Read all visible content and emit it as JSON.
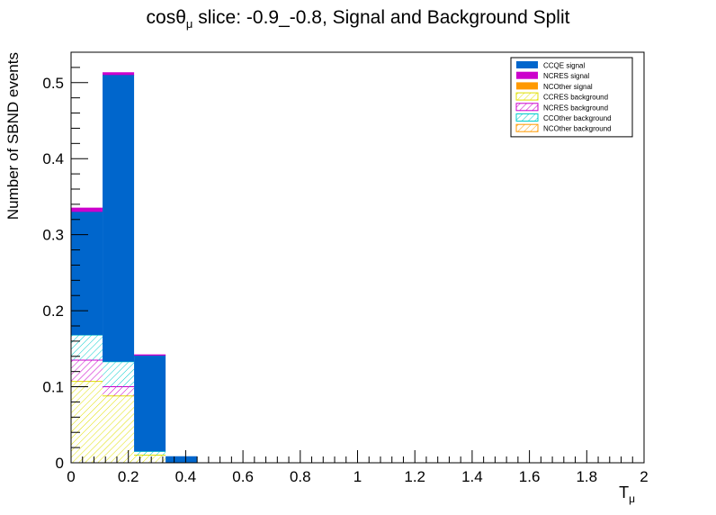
{
  "chart_data": {
    "type": "bar",
    "stacked": true,
    "title_prefix": "cosθ",
    "title_sub": "μ",
    "title_suffix": " slice: -0.9_-0.8, Signal and Background Split",
    "xlabel": "T",
    "xlabel_sub": "μ",
    "ylabel": "Number of SBND events",
    "xlim": [
      0,
      2
    ],
    "ylim": [
      0,
      0.54
    ],
    "legend_position": "top-right",
    "bin_edges": [
      0,
      0.11,
      0.22,
      0.33,
      0.44
    ],
    "x_ticks": [
      "0",
      "0.2",
      "0.4",
      "0.6",
      "0.8",
      "1",
      "1.2",
      "1.4",
      "1.6",
      "1.8",
      "2"
    ],
    "y_ticks": [
      "0",
      "0.1",
      "0.2",
      "0.3",
      "0.4",
      "0.5"
    ],
    "series": [
      {
        "name": "NCOther background",
        "values": [
          0.0,
          0.0,
          0.0,
          0.0
        ],
        "color": "#ff9900",
        "pattern": "hatch"
      },
      {
        "name": "CCRES background",
        "values": [
          0.107,
          0.088,
          0.01,
          0.0
        ],
        "color": "#e0e000",
        "pattern": "hatch"
      },
      {
        "name": "NCRES background",
        "values": [
          0.028,
          0.012,
          0.0,
          0.0
        ],
        "color": "#cc00cc",
        "pattern": "hatch"
      },
      {
        "name": "CCOther background",
        "values": [
          0.033,
          0.033,
          0.005,
          0.0
        ],
        "color": "#00cccc",
        "pattern": "hatch"
      },
      {
        "name": "NCOther signal",
        "values": [
          0.0,
          0.0,
          0.0,
          0.0
        ],
        "color": "#ff9900",
        "pattern": "solid"
      },
      {
        "name": "CCQE signal",
        "values": [
          0.162,
          0.377,
          0.126,
          0.008
        ],
        "color": "#0066cc",
        "pattern": "solid"
      },
      {
        "name": "NCRES signal",
        "values": [
          0.005,
          0.003,
          0.001,
          0.0
        ],
        "color": "#cc00cc",
        "pattern": "solid"
      }
    ],
    "legend_order": [
      "CCQE signal",
      "NCRES signal",
      "NCOther signal",
      "CCRES background",
      "NCRES background",
      "CCOther background",
      "NCOther background"
    ]
  }
}
